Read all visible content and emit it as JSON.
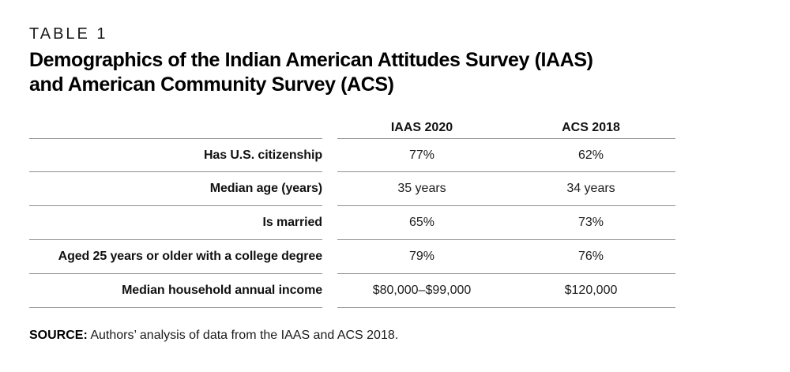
{
  "eyebrow": "TABLE 1",
  "title": {
    "line1": "Demographics of the Indian American Attitudes Survey (IAAS)",
    "line2": "and American Community Survey (ACS)"
  },
  "table": {
    "columns": [
      "IAAS 2020",
      "ACS 2018"
    ],
    "rows": [
      {
        "label": "Has U.S. citizenship",
        "iaas": "77%",
        "acs": "62%"
      },
      {
        "label": "Median age (years)",
        "iaas": "35 years",
        "acs": "34 years"
      },
      {
        "label": "Is married",
        "iaas": "65%",
        "acs": "73%"
      },
      {
        "label": "Aged 25 years or older with a college degree",
        "iaas": "79%",
        "acs": "76%"
      },
      {
        "label": "Median household annual income",
        "iaas": "$80,000–$99,000",
        "acs": "$120,000"
      }
    ]
  },
  "source": {
    "label": "SOURCE:",
    "text": "Authors’ analysis of data from the IAAS and ACS 2018."
  },
  "colors": {
    "rule": "#8f8f8f",
    "text": "#111111"
  }
}
